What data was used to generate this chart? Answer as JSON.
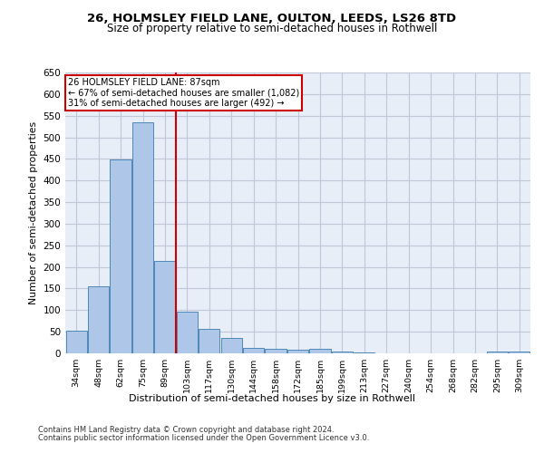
{
  "title1": "26, HOLMSLEY FIELD LANE, OULTON, LEEDS, LS26 8TD",
  "title2": "Size of property relative to semi-detached houses in Rothwell",
  "xlabel": "Distribution of semi-detached houses by size in Rothwell",
  "ylabel": "Number of semi-detached properties",
  "categories": [
    "34sqm",
    "48sqm",
    "62sqm",
    "75sqm",
    "89sqm",
    "103sqm",
    "117sqm",
    "130sqm",
    "144sqm",
    "158sqm",
    "172sqm",
    "185sqm",
    "199sqm",
    "213sqm",
    "227sqm",
    "240sqm",
    "254sqm",
    "268sqm",
    "282sqm",
    "295sqm",
    "309sqm"
  ],
  "values": [
    52,
    155,
    448,
    535,
    213,
    97,
    57,
    35,
    12,
    10,
    9,
    10,
    5,
    3,
    1,
    1,
    1,
    1,
    0,
    4,
    4
  ],
  "bar_color": "#AEC6E8",
  "bar_edge_color": "#4D88B8",
  "property_line_x": 4,
  "property_line_label": "26 HOLMSLEY FIELD LANE: 87sqm",
  "annotation_line1": "← 67% of semi-detached houses are smaller (1,082)",
  "annotation_line2": "31% of semi-detached houses are larger (492) →",
  "box_color": "#CC0000",
  "ylim": [
    0,
    650
  ],
  "yticks": [
    0,
    50,
    100,
    150,
    200,
    250,
    300,
    350,
    400,
    450,
    500,
    550,
    600,
    650
  ],
  "footer1": "Contains HM Land Registry data © Crown copyright and database right 2024.",
  "footer2": "Contains public sector information licensed under the Open Government Licence v3.0.",
  "background_color": "#E8EEF8",
  "plot_background": "#FFFFFF",
  "grid_color": "#C0C8D8"
}
